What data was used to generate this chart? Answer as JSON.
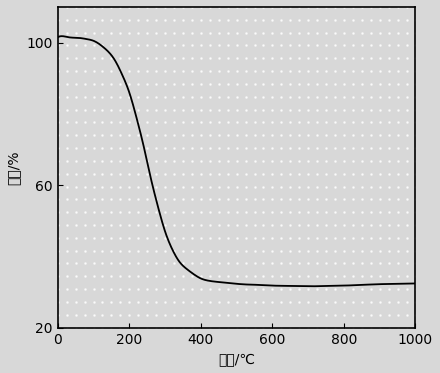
{
  "title": "",
  "xlabel": "温度/℃",
  "ylabel": "失重/%",
  "xlim": [
    0,
    1000
  ],
  "ylim": [
    20,
    110
  ],
  "xticks": [
    0,
    200,
    400,
    600,
    800,
    1000
  ],
  "yticks": [
    20,
    60,
    100
  ],
  "line_color": "#000000",
  "line_width": 1.3,
  "dot_color": "#b0b0b0",
  "background_color": "#e8e8e8",
  "curve_x": [
    0,
    10,
    30,
    60,
    80,
    100,
    130,
    160,
    180,
    200,
    220,
    240,
    260,
    280,
    300,
    320,
    340,
    360,
    380,
    400,
    420,
    450,
    480,
    500,
    530,
    560,
    600,
    650,
    700,
    750,
    800,
    850,
    900,
    950,
    1000
  ],
  "curve_y": [
    101.5,
    101.8,
    101.5,
    101.3,
    101.0,
    100.5,
    98.5,
    95.0,
    91.0,
    86.0,
    79.0,
    71.0,
    62.0,
    54.0,
    47.0,
    42.0,
    38.5,
    36.5,
    35.0,
    33.8,
    33.2,
    32.8,
    32.5,
    32.3,
    32.1,
    32.0,
    31.8,
    31.7,
    31.6,
    31.7,
    31.8,
    32.0,
    32.2,
    32.3,
    32.4
  ]
}
